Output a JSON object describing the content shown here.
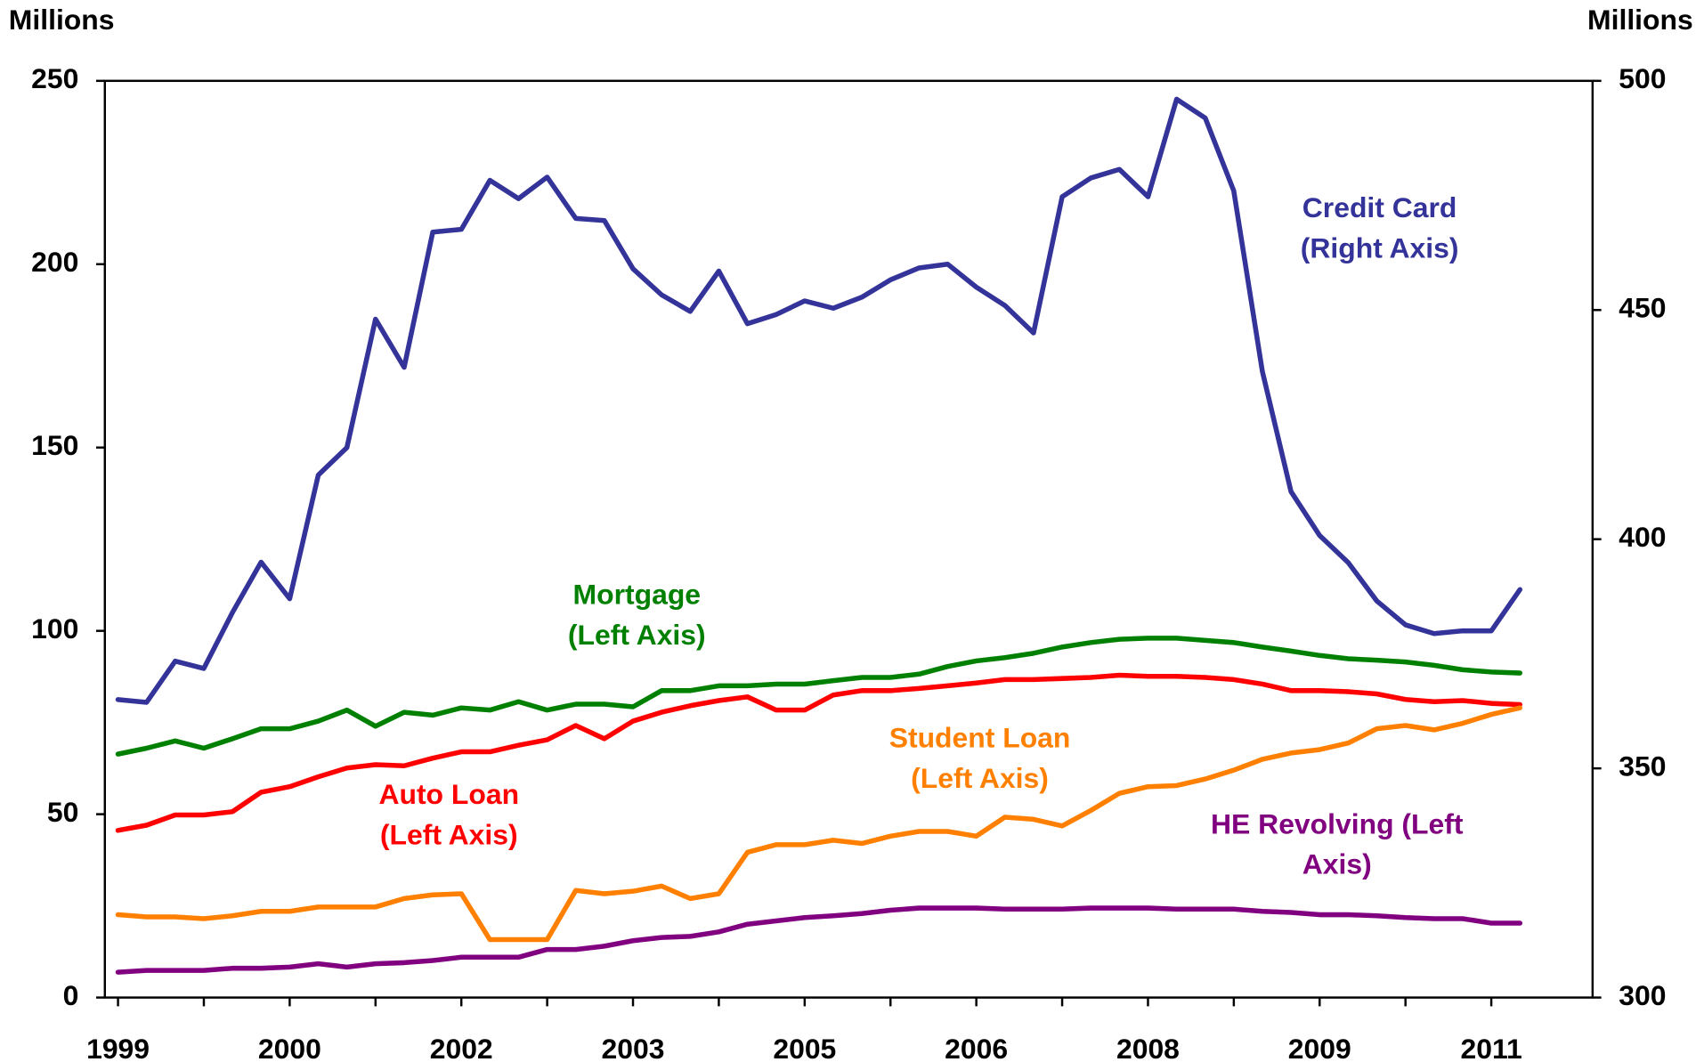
{
  "chart_data": {
    "type": "line",
    "y_label": "Millions",
    "y2_label": "Millions",
    "categories": [
      "1999",
      null,
      null,
      null,
      null,
      null,
      "2000",
      null,
      null,
      null,
      null,
      null,
      "2002",
      null,
      null,
      null,
      null,
      null,
      "2003",
      null,
      null,
      null,
      null,
      null,
      "2005",
      null,
      null,
      null,
      null,
      null,
      "2006",
      null,
      null,
      null,
      null,
      null,
      "2008",
      null,
      null,
      null,
      null,
      null,
      "2009",
      null,
      null,
      null,
      null,
      null,
      "2011",
      null
    ],
    "ylim": [
      0,
      250
    ],
    "yticks": [
      0,
      50,
      100,
      150,
      200,
      250
    ],
    "y2lim": [
      300,
      500
    ],
    "y2ticks": [
      300,
      350,
      400,
      450,
      500
    ],
    "series": [
      {
        "name": "Credit Card",
        "label_lines": [
          "Credit Card",
          "(Right Axis)"
        ],
        "color": "#333399",
        "axis": "y2",
        "values": [
          365,
          364.4,
          373.4,
          371.8,
          384,
          395,
          387,
          414,
          420,
          448,
          437.5,
          467,
          467.6,
          478.3,
          474.3,
          479,
          470,
          469.5,
          459,
          453.3,
          449.7,
          458.5,
          447,
          449,
          452,
          450.4,
          452.8,
          456.6,
          459.2,
          460,
          455,
          451,
          445,
          474.7,
          478.8,
          480.7,
          474.7,
          496,
          491.9,
          476,
          436.6,
          410.4,
          400.8,
          394.9,
          386.5,
          381.3,
          379.4,
          380,
          380,
          389
        ]
      },
      {
        "name": "Mortgage",
        "label_lines": [
          "Mortgage",
          "(Left Axis)"
        ],
        "color": "#008000",
        "values": [
          66.4,
          68,
          70,
          68,
          70.6,
          73.3,
          73.3,
          75.4,
          78.4,
          74,
          77.8,
          77,
          79,
          78.4,
          80.7,
          78.4,
          80,
          80,
          79.3,
          83.7,
          83.7,
          85,
          85,
          85.5,
          85.5,
          86.4,
          87.3,
          87.3,
          88.2,
          90.3,
          91.8,
          92.7,
          93.9,
          95.6,
          96.8,
          97.7,
          98,
          98,
          97.4,
          96.8,
          95.6,
          94.5,
          93.3,
          92.4,
          92,
          91.5,
          90.6,
          89.4,
          88.8,
          88.5
        ]
      },
      {
        "name": "Auto Loan",
        "label_lines": [
          "Auto Loan",
          "(Left Axis)"
        ],
        "color": "#ff0000",
        "values": [
          45.6,
          47,
          49.8,
          49.8,
          50.7,
          56,
          57.5,
          60.2,
          62.6,
          63.5,
          63.2,
          65.3,
          67,
          67,
          68.8,
          70.3,
          74.2,
          70.6,
          75.4,
          77.8,
          79.6,
          81,
          82,
          78.4,
          78.4,
          82.5,
          83.7,
          83.7,
          84.3,
          85,
          85.8,
          86.7,
          86.7,
          87,
          87.3,
          87.9,
          87.6,
          87.6,
          87.3,
          86.7,
          85.5,
          83.7,
          83.7,
          83.4,
          82.8,
          81.3,
          80.7,
          81,
          80.2,
          79.9
        ]
      },
      {
        "name": "Student Loan",
        "label_lines": [
          "Student Loan",
          "(Left Axis)"
        ],
        "color": "#ff8000",
        "values": [
          22.6,
          22,
          22,
          21.5,
          22.3,
          23.5,
          23.5,
          24.7,
          24.7,
          24.7,
          27,
          28,
          28.3,
          15.8,
          15.8,
          15.8,
          29.2,
          28.3,
          29,
          30.4,
          27,
          28.3,
          39.6,
          41.7,
          41.7,
          42.9,
          42,
          44,
          45.3,
          45.3,
          44,
          49.2,
          48.6,
          46.8,
          51,
          55.7,
          57.5,
          57.8,
          59.6,
          62,
          65,
          66.7,
          67.6,
          69.4,
          73.3,
          74.2,
          73,
          74.8,
          77.2,
          79
        ]
      },
      {
        "name": "HE Revolving",
        "label_lines": [
          "HE Revolving (Left",
          "Axis)"
        ],
        "color": "#800080",
        "values": [
          6.9,
          7.4,
          7.4,
          7.4,
          8,
          8,
          8.3,
          9.2,
          8.3,
          9.2,
          9.5,
          10.1,
          11,
          11,
          11,
          13.1,
          13.1,
          14,
          15.5,
          16.4,
          16.7,
          17.9,
          20,
          20.9,
          21.8,
          22.3,
          22.9,
          23.8,
          24.4,
          24.4,
          24.4,
          24.1,
          24.1,
          24.1,
          24.4,
          24.4,
          24.4,
          24.1,
          24.1,
          24.1,
          23.5,
          23.2,
          22.6,
          22.6,
          22.3,
          21.8,
          21.5,
          21.5,
          20.3,
          20.3
        ]
      }
    ]
  }
}
